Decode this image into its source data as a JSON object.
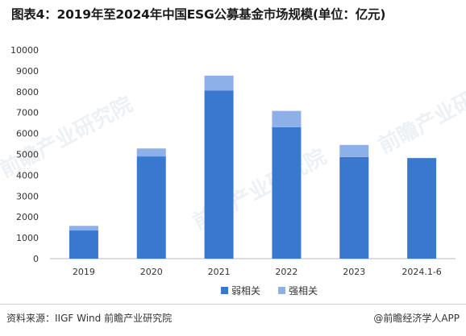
{
  "title": "图表4：2019年至2024年中国ESG公募基金市场规模(单位：亿元)",
  "watermark": "前瞻产业研究院",
  "colors": {
    "weak": "#3a78d0",
    "strong": "#8db0e8",
    "axis": "#bbbbbb"
  },
  "footer": {
    "source": "资料来源：IIGF Wind 前瞻产业研究院",
    "brand": "@前瞻经济学人APP"
  },
  "chart_data": {
    "type": "bar",
    "stacked": true,
    "categories": [
      "2019",
      "2020",
      "2021",
      "2022",
      "2023",
      "2024.1-6"
    ],
    "series": [
      {
        "name": "弱相关",
        "values": [
          1350,
          4900,
          8050,
          6300,
          4870,
          4820
        ]
      },
      {
        "name": "强相关",
        "values": [
          220,
          380,
          720,
          780,
          580,
          0
        ]
      }
    ],
    "ylim": [
      0,
      10000
    ],
    "yticks": [
      "0",
      "1000",
      "2000",
      "3000",
      "4000",
      "5000",
      "6000",
      "7000",
      "8000",
      "9000",
      "10000"
    ],
    "grid": false,
    "legend_position": "bottom"
  }
}
